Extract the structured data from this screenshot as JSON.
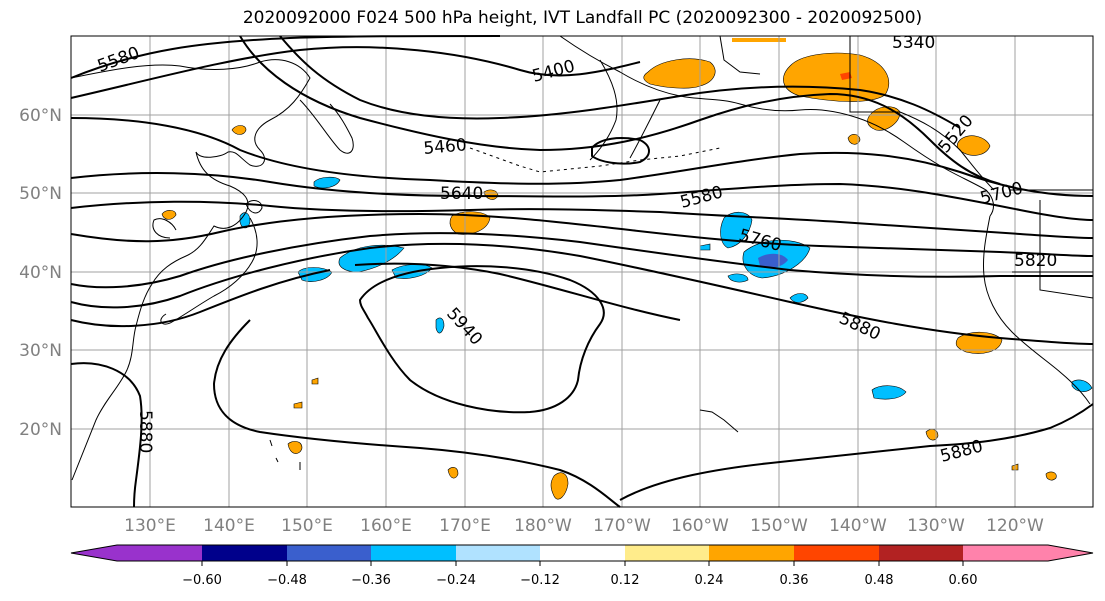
{
  "title": "2020092000 F024 500 hPa height, IVT Landfall PC (2020092300 - 2020092500)",
  "lat_labels": [
    "60°N",
    "50°N",
    "40°N",
    "30°N",
    "20°N"
  ],
  "lon_labels": [
    "130°E",
    "140°E",
    "150°E",
    "160°E",
    "170°E",
    "180°W",
    "170°W",
    "160°W",
    "150°W",
    "140°W",
    "130°W",
    "120°W"
  ],
  "contour_labels": [
    "5580",
    "5400",
    "5340",
    "5460",
    "5520",
    "5640",
    "5580",
    "5700",
    "5760",
    "5820",
    "5940",
    "5880",
    "5880",
    "5880"
  ],
  "colorbar": {
    "tick_labels": [
      "−0.60",
      "−0.48",
      "−0.36",
      "−0.24",
      "−0.12",
      "0.12",
      "0.24",
      "0.36",
      "0.48",
      "0.60"
    ],
    "colors": [
      "#9932cc",
      "#00008b",
      "#3a5fcd",
      "#00bfff",
      "#b0e2ff",
      "#ffffff",
      "#ffec8b",
      "#ffa500",
      "#ff4500",
      "#b22222",
      "#ff82ab"
    ]
  },
  "colors": {
    "contour": "#000000",
    "grid": "#a0a0a0",
    "coast": "#000000"
  }
}
